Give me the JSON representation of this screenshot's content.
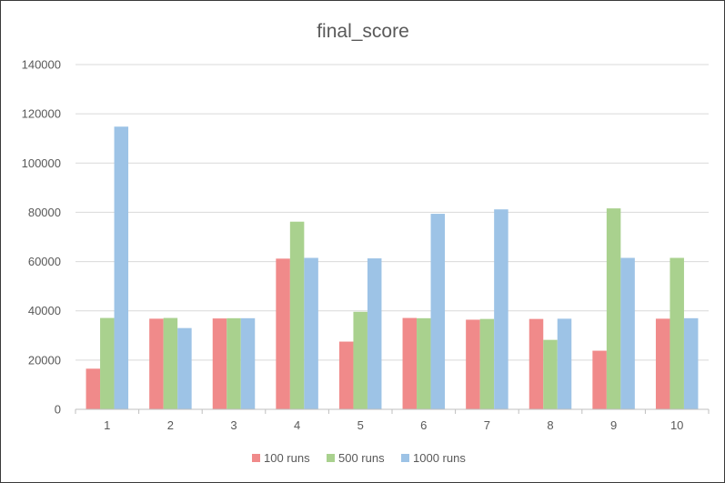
{
  "chart_data": {
    "type": "bar",
    "title": "final_score",
    "categories": [
      "1",
      "2",
      "3",
      "4",
      "5",
      "6",
      "7",
      "8",
      "9",
      "10"
    ],
    "series": [
      {
        "name": "100 runs",
        "color": "#F08A8A",
        "values": [
          16500,
          36800,
          36900,
          61200,
          27500,
          37100,
          36400,
          36700,
          23800,
          36800
        ]
      },
      {
        "name": "500 runs",
        "color": "#A9D18E",
        "values": [
          37100,
          37100,
          37000,
          76200,
          39600,
          37000,
          36700,
          28200,
          81600,
          61500
        ]
      },
      {
        "name": "1000 runs",
        "color": "#9DC3E6",
        "values": [
          114800,
          33000,
          37000,
          61500,
          61300,
          79400,
          81200,
          36800,
          61500,
          37000
        ]
      }
    ],
    "ylim": [
      0,
      140000
    ],
    "yticks": [
      "0",
      "20000",
      "40000",
      "60000",
      "80000",
      "100000",
      "120000",
      "140000"
    ],
    "grid": true,
    "legend": "bottom",
    "gridline_color": "#d9d9d9",
    "axis_color": "#bfbfbf"
  }
}
